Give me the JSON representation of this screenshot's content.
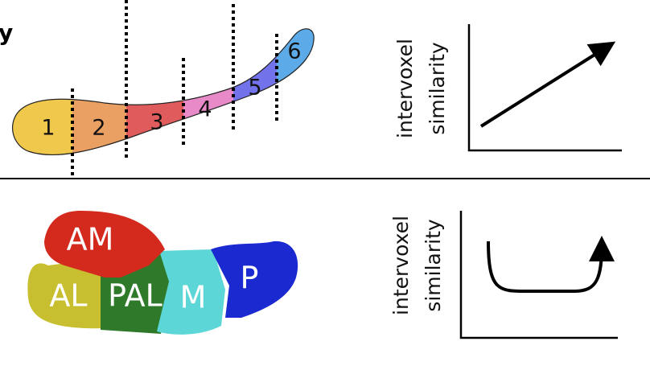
{
  "top": {
    "title": "y",
    "segments": [
      "1",
      "2",
      "3",
      "4",
      "5",
      "6"
    ],
    "graph": {
      "y_label": [
        "intervoxel",
        "similarity"
      ]
    }
  },
  "bottom": {
    "regions": [
      "AM",
      "AL",
      "PAL",
      "M",
      "P"
    ],
    "graph": {
      "y_label": [
        "intervoxel",
        "similarity"
      ]
    }
  }
}
